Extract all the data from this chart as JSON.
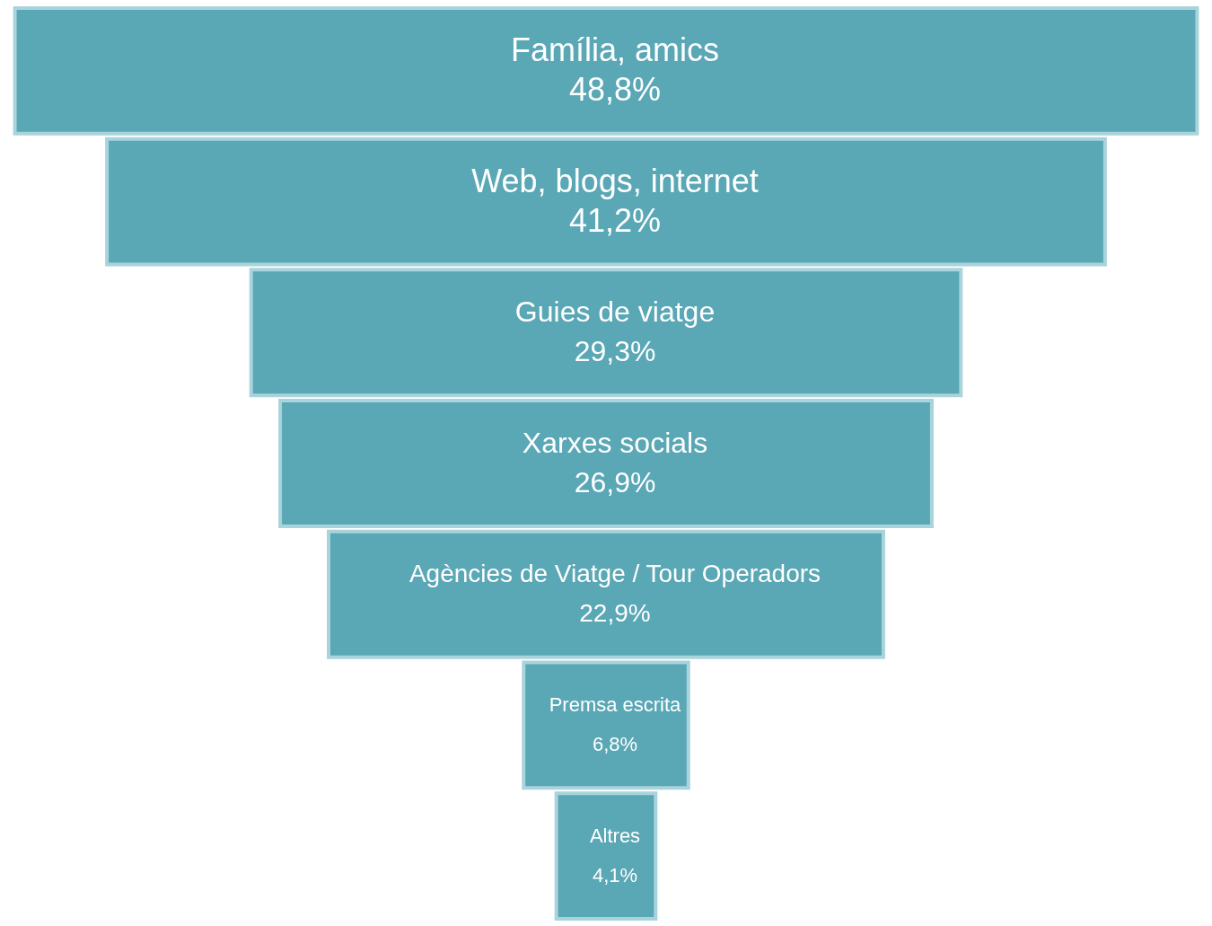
{
  "chart_data": {
    "type": "other",
    "categories": [
      "Família, amics",
      "Web, blogs, internet",
      "Guies de viatge",
      "Xarxes socials",
      "Agències de Viatge / Tour Operadors",
      "Premsa escrita",
      "Altres"
    ],
    "values": [
      48.8,
      41.2,
      29.3,
      26.9,
      22.9,
      6.8,
      4.1
    ],
    "value_labels": [
      "48,8%",
      "41,2%",
      "29,3%",
      "26,9%",
      "22,9%",
      "6,8%",
      "4,1%"
    ],
    "color": "#5aa7b5"
  }
}
